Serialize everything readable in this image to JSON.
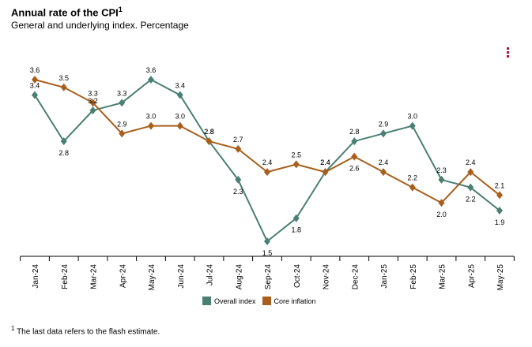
{
  "header": {
    "title": "Annual rate of the CPI",
    "title_sup": "1",
    "subtitle": "General and underlying index. Percentage"
  },
  "footnote": {
    "marker": "1",
    "text": "The last data refers to the flash estimate."
  },
  "menu": {
    "icon": "more-vertical-icon",
    "color": "#b0102a"
  },
  "chart_data": {
    "type": "line",
    "title": "Annual rate of the CPI",
    "subtitle": "General and underlying index. Percentage",
    "categories": [
      "Jan-24",
      "Feb-24",
      "Mar-24",
      "Apr-24",
      "May-24",
      "Jun-24",
      "Jul-24",
      "Aug-24",
      "Sep-24",
      "Oct-24",
      "Nov-24",
      "Dec-24",
      "Jan-25",
      "Feb-25",
      "Mar-25",
      "Apr-25",
      "May-25"
    ],
    "series": [
      {
        "name": "Overall index",
        "color": "#4a7f73",
        "values": [
          3.4,
          2.8,
          3.2,
          3.3,
          3.6,
          3.4,
          2.8,
          2.3,
          1.5,
          1.8,
          2.4,
          2.8,
          2.9,
          3.0,
          2.3,
          2.2,
          1.9
        ]
      },
      {
        "name": "Core inflation",
        "color": "#a85f1c",
        "values": [
          3.6,
          3.5,
          3.3,
          2.9,
          3.0,
          3.0,
          2.8,
          2.7,
          2.4,
          2.5,
          2.4,
          2.6,
          2.4,
          2.2,
          2.0,
          2.4,
          2.1
        ]
      }
    ],
    "labels": {
      "Overall index": [
        "3.4",
        "2.8",
        "3.2",
        "3.3",
        "3.6",
        "3.4",
        "2.8",
        "2.3",
        "1.5",
        "1.8",
        "2.4",
        "2.8",
        "2.9",
        "3.0",
        "2.3",
        "2.2",
        "1.9"
      ],
      "Core inflation": [
        "3.6",
        "3.5",
        "3.3",
        "2.9",
        "3.0",
        "3.0",
        "2.8",
        "2.7",
        "2.4",
        "2.5",
        "2.4",
        "2.6",
        "2.4",
        "2.2",
        "2.0",
        "2.4",
        "2.1"
      ]
    },
    "ylim": [
      1.5,
      3.6
    ],
    "grid": false,
    "legend_position": "bottom-center",
    "xlabel": "",
    "ylabel": ""
  }
}
